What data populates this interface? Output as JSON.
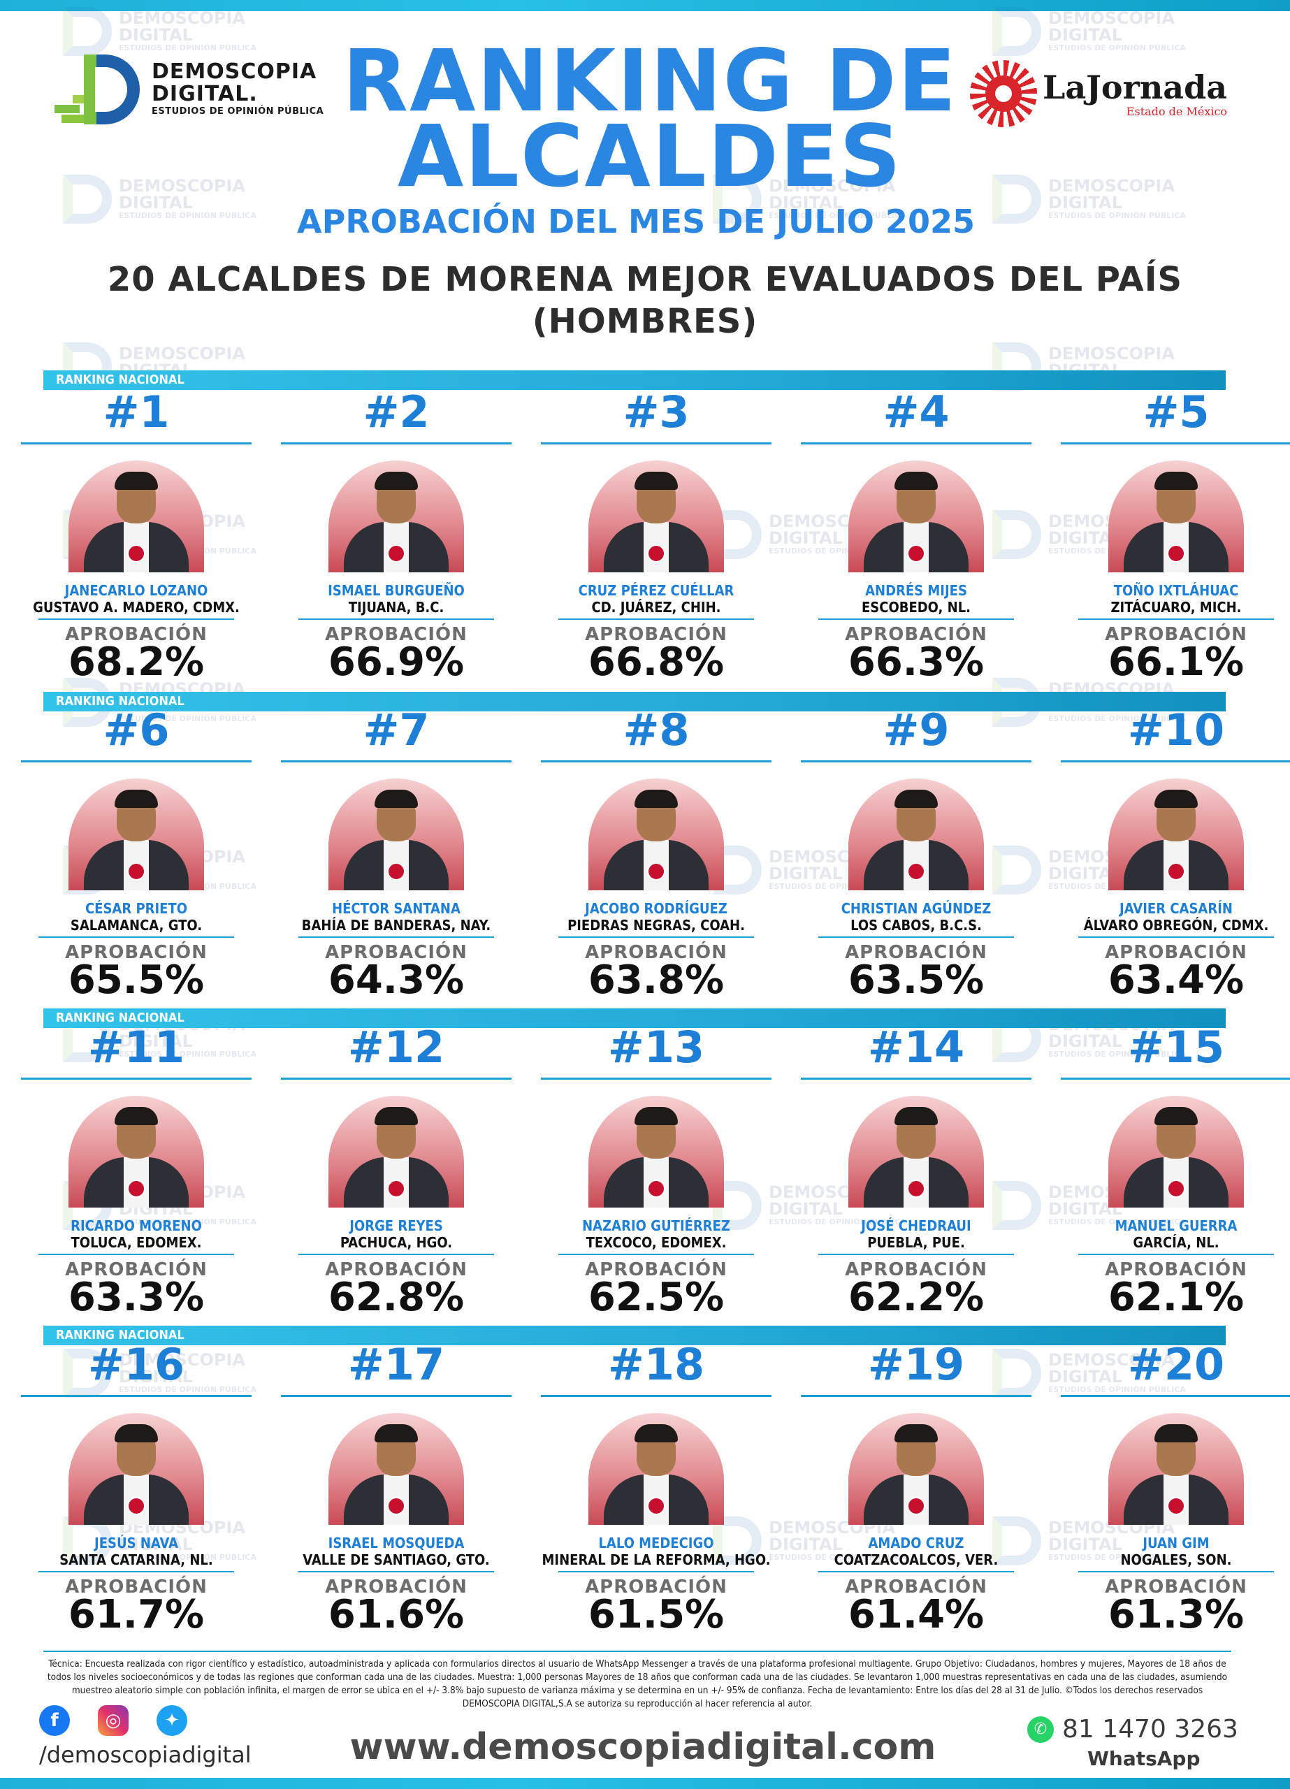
{
  "header": {
    "title_line1": "RANKING DE",
    "title_line2": "ALCALDES",
    "subtitle": "APROBACIÓN DEL MES DE JULIO 2025",
    "heading_line1": "20 ALCALDES DE MORENA MEJOR EVALUADOS DEL PAÍS",
    "heading_line2": "(HOMBRES)"
  },
  "logos": {
    "demoscopia_line1": "DEMOSCOPIA",
    "demoscopia_line2": "DIGITAL.",
    "demoscopia_line3": "ESTUDIOS DE OPINIÓN PÚBLICA",
    "jornada_brand": "LaJornada",
    "jornada_sub": "Estado de México"
  },
  "watermark": {
    "line1": "DEMOSCOPIA",
    "line2": "DIGITAL",
    "line3": "ESTUDIOS DE OPINIÓN PÚBLICA"
  },
  "section_label": "RANKING NACIONAL",
  "approval_label": "APROBACIÓN",
  "party_badge": "morena",
  "colors": {
    "accent_blue": "#2a86e0",
    "rank_blue": "#1d7fd6",
    "bar_cyan": "#23a9d6",
    "photo_gradient_bottom": "#c94a56"
  },
  "rankings": [
    {
      "rank": "#1",
      "name": "JANECARLO LOZANO",
      "place": "GUSTAVO A. MADERO, CDMX.",
      "approval": "68.2%"
    },
    {
      "rank": "#2",
      "name": "ISMAEL BURGUEÑO",
      "place": "TIJUANA, B.C.",
      "approval": "66.9%"
    },
    {
      "rank": "#3",
      "name": "CRUZ PÉREZ CUÉLLAR",
      "place": "CD. JUÁREZ, CHIH.",
      "approval": "66.8%"
    },
    {
      "rank": "#4",
      "name": "ANDRÉS MIJES",
      "place": "ESCOBEDO, NL.",
      "approval": "66.3%"
    },
    {
      "rank": "#5",
      "name": "TOÑO IXTLÁHUAC",
      "place": "ZITÁCUARO, MICH.",
      "approval": "66.1%"
    },
    {
      "rank": "#6",
      "name": "CÉSAR PRIETO",
      "place": "SALAMANCA, GTO.",
      "approval": "65.5%"
    },
    {
      "rank": "#7",
      "name": "HÉCTOR SANTANA",
      "place": "BAHÍA DE BANDERAS, NAY.",
      "approval": "64.3%"
    },
    {
      "rank": "#8",
      "name": "JACOBO RODRÍGUEZ",
      "place": "PIEDRAS NEGRAS, COAH.",
      "approval": "63.8%"
    },
    {
      "rank": "#9",
      "name": "CHRISTIAN AGÚNDEZ",
      "place": "LOS CABOS, B.C.S.",
      "approval": "63.5%"
    },
    {
      "rank": "#10",
      "name": "JAVIER CASARÍN",
      "place": "ÁLVARO OBREGÓN, CDMX.",
      "approval": "63.4%"
    },
    {
      "rank": "#11",
      "name": "RICARDO MORENO",
      "place": "TOLUCA, EDOMEX.",
      "approval": "63.3%"
    },
    {
      "rank": "#12",
      "name": "JORGE REYES",
      "place": "PACHUCA, HGO.",
      "approval": "62.8%"
    },
    {
      "rank": "#13",
      "name": "NAZARIO GUTIÉRREZ",
      "place": "TEXCOCO, EDOMEX.",
      "approval": "62.5%"
    },
    {
      "rank": "#14",
      "name": "JOSÉ CHEDRAUI",
      "place": "PUEBLA, PUE.",
      "approval": "62.2%"
    },
    {
      "rank": "#15",
      "name": "MANUEL GUERRA",
      "place": "GARCÍA, NL.",
      "approval": "62.1%"
    },
    {
      "rank": "#16",
      "name": "JESÚS NAVA",
      "place": "SANTA CATARINA, NL.",
      "approval": "61.7%"
    },
    {
      "rank": "#17",
      "name": "ISRAEL MOSQUEDA",
      "place": "VALLE DE SANTIAGO, GTO.",
      "approval": "61.6%"
    },
    {
      "rank": "#18",
      "name": "LALO MEDECIGO",
      "place": "MINERAL DE LA REFORMA, HGO.",
      "approval": "61.5%"
    },
    {
      "rank": "#19",
      "name": "AMADO CRUZ",
      "place": "COATZACOALCOS, VER.",
      "approval": "61.4%"
    },
    {
      "rank": "#20",
      "name": "JUAN GIM",
      "place": "NOGALES, SON.",
      "approval": "61.3%"
    }
  ],
  "footer": {
    "tecnica": "Técnica: Encuesta realizada con rigor científico y estadístico, autoadministrada y aplicada con formularios directos al usuario de WhatsApp Messenger a través de una plataforma profesional multiagente. Grupo Objetivo: Ciudadanos, hombres y mujeres, Mayores de 18 años de todos los niveles socioeconómicos y de todas las regiones que conforman cada una de las ciudades. Muestra: 1,000 personas Mayores de 18 años que conforman cada una de las ciudades. Se levantaron 1,000 muestras representativas en cada una de las ciudades, asumiendo muestreo aleatorio simple con población infinita, el margen de error se ubica en el +/- 3.8% bajo supuesto de varianza máxima y se determina en un +/- 95% de confianza. Fecha de levantamiento: Entre los días del 28 al 31 de Julio. ©Todos los derechos reservados DEMOSCOPIA DIGITAL,S.A se autoriza su reproducción al hacer referencia al autor.",
    "handle": "/demoscopiadigital",
    "website": "www.demoscopiadigital.com",
    "phone": "81 1470 3263",
    "whatsapp_label": "WhatsApp",
    "icons": [
      "facebook-icon",
      "instagram-icon",
      "twitter-icon",
      "whatsapp-icon"
    ]
  }
}
